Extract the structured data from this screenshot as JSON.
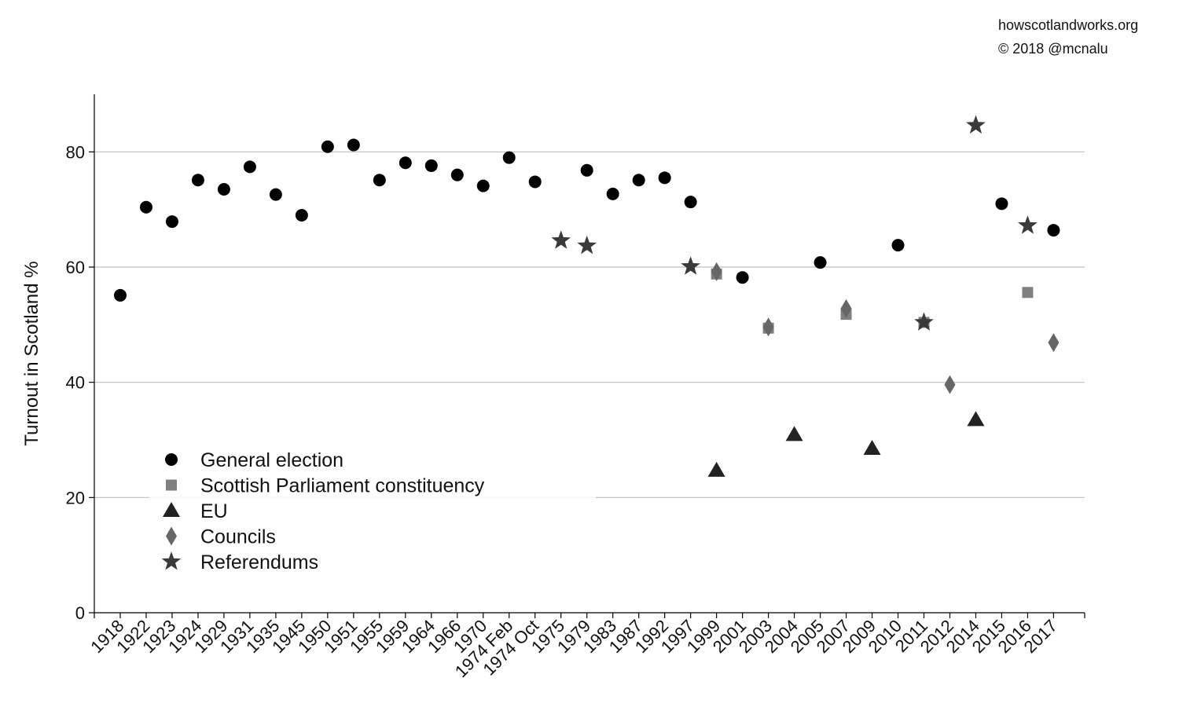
{
  "attribution": {
    "site": "howscotlandworks.org",
    "copyright": "© 2018  @mcnalu"
  },
  "chart_data": {
    "type": "scatter",
    "title": "",
    "xlabel": "",
    "ylabel": "Turnout in Scotland %",
    "ylim": [
      0,
      90
    ],
    "yticks": [
      0,
      20,
      40,
      60,
      80
    ],
    "grid": "horizontal",
    "legend_position": "bottom-left",
    "categories": [
      "1918",
      "1922",
      "1923",
      "1924",
      "1929",
      "1931",
      "1935",
      "1945",
      "1950",
      "1951",
      "1955",
      "1959",
      "1964",
      "1966",
      "1970",
      "1974 Feb",
      "1974 Oct",
      "1975",
      "1979",
      "1983",
      "1987",
      "1992",
      "1997",
      "1999",
      "2001",
      "2003",
      "2004",
      "2005",
      "2007",
      "2009",
      "2010",
      "2011",
      "2012",
      "2014",
      "2015",
      "2016",
      "2017"
    ],
    "series": [
      {
        "name": "General election",
        "marker": "circle",
        "color": "#000000",
        "points": [
          {
            "x": "1918",
            "y": 55.1
          },
          {
            "x": "1922",
            "y": 70.4
          },
          {
            "x": "1923",
            "y": 67.9
          },
          {
            "x": "1924",
            "y": 75.1
          },
          {
            "x": "1929",
            "y": 73.5
          },
          {
            "x": "1931",
            "y": 77.4
          },
          {
            "x": "1935",
            "y": 72.6
          },
          {
            "x": "1945",
            "y": 69.0
          },
          {
            "x": "1950",
            "y": 80.9
          },
          {
            "x": "1951",
            "y": 81.2
          },
          {
            "x": "1955",
            "y": 75.1
          },
          {
            "x": "1959",
            "y": 78.1
          },
          {
            "x": "1964",
            "y": 77.6
          },
          {
            "x": "1966",
            "y": 76.0
          },
          {
            "x": "1970",
            "y": 74.1
          },
          {
            "x": "1974 Feb",
            "y": 79.0
          },
          {
            "x": "1974 Oct",
            "y": 74.8
          },
          {
            "x": "1979",
            "y": 76.8
          },
          {
            "x": "1983",
            "y": 72.7
          },
          {
            "x": "1987",
            "y": 75.1
          },
          {
            "x": "1992",
            "y": 75.5
          },
          {
            "x": "1997",
            "y": 71.3
          },
          {
            "x": "2001",
            "y": 58.2
          },
          {
            "x": "2005",
            "y": 60.8
          },
          {
            "x": "2010",
            "y": 63.8
          },
          {
            "x": "2015",
            "y": 71.0
          },
          {
            "x": "2017",
            "y": 66.4
          }
        ]
      },
      {
        "name": "Scottish Parliament constituency",
        "marker": "square",
        "color": "#808080",
        "points": [
          {
            "x": "1999",
            "y": 58.8
          },
          {
            "x": "2003",
            "y": 49.4
          },
          {
            "x": "2007",
            "y": 51.8
          },
          {
            "x": "2011",
            "y": 50.4
          },
          {
            "x": "2016",
            "y": 55.6
          }
        ]
      },
      {
        "name": "EU",
        "marker": "triangle",
        "color": "#222222",
        "points": [
          {
            "x": "1999",
            "y": 24.7
          },
          {
            "x": "2004",
            "y": 30.9
          },
          {
            "x": "2009",
            "y": 28.5
          },
          {
            "x": "2014",
            "y": 33.5
          }
        ]
      },
      {
        "name": "Councils",
        "marker": "diamond",
        "color": "#666666",
        "points": [
          {
            "x": "1999",
            "y": 59.2
          },
          {
            "x": "2003",
            "y": 49.6
          },
          {
            "x": "2007",
            "y": 52.8
          },
          {
            "x": "2012",
            "y": 39.6
          },
          {
            "x": "2017",
            "y": 46.9
          }
        ]
      },
      {
        "name": "Referendums",
        "marker": "star",
        "color": "#3a3a3a",
        "points": [
          {
            "x": "1975",
            "y": 64.6
          },
          {
            "x": "1979",
            "y": 63.7
          },
          {
            "x": "1997",
            "y": 60.1
          },
          {
            "x": "2011",
            "y": 50.4
          },
          {
            "x": "2014",
            "y": 84.6
          },
          {
            "x": "2016",
            "y": 67.2
          }
        ]
      }
    ]
  }
}
